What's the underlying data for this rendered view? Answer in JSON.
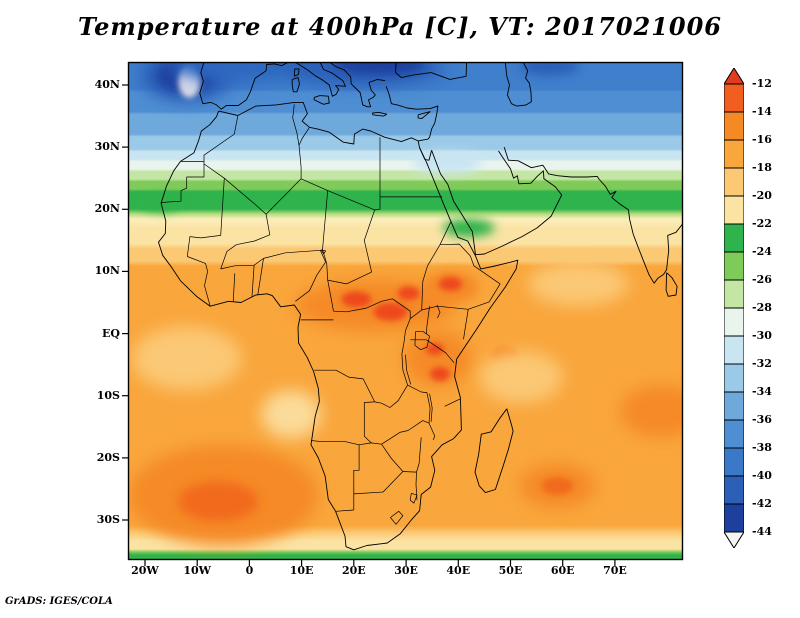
{
  "title": "Temperature at 400hPa [C], VT: 2017021006",
  "credit": "GrADS: IGES/COLA",
  "axes": {
    "y_ticks": [
      {
        "label": "40N",
        "lat": 40
      },
      {
        "label": "30N",
        "lat": 30
      },
      {
        "label": "20N",
        "lat": 20
      },
      {
        "label": "10N",
        "lat": 10
      },
      {
        "label": "EQ",
        "lat": 0
      },
      {
        "label": "10S",
        "lat": -10
      },
      {
        "label": "20S",
        "lat": -20
      },
      {
        "label": "30S",
        "lat": -30
      }
    ],
    "x_ticks": [
      {
        "label": "20W",
        "lon": -20
      },
      {
        "label": "10W",
        "lon": -10
      },
      {
        "label": "0",
        "lon": 0
      },
      {
        "label": "10E",
        "lon": 10
      },
      {
        "label": "20E",
        "lon": 20
      },
      {
        "label": "30E",
        "lon": 30
      },
      {
        "label": "40E",
        "lon": 40
      },
      {
        "label": "50E",
        "lon": 50
      },
      {
        "label": "60E",
        "lon": 60
      },
      {
        "label": "70E",
        "lon": 70
      }
    ]
  },
  "colorbar": {
    "boundary_labels": [
      "-12",
      "-14",
      "-16",
      "-18",
      "-20",
      "-22",
      "-24",
      "-26",
      "-28",
      "-30",
      "-32",
      "-34",
      "-36",
      "-38",
      "-40",
      "-42",
      "-44"
    ],
    "over_color": "#e23b1e",
    "under_color": "#f4f4f4",
    "segment_colors": [
      "#f15f20",
      "#f58a25",
      "#f9a63c",
      "#fbc874",
      "#fbe3a4",
      "#2fb34c",
      "#7fcb5a",
      "#c4e6a4",
      "#e9f4ec",
      "#c9e5f2",
      "#9bcae8",
      "#6fa9dc",
      "#4f8ed2",
      "#3a78c8",
      "#2b5fb8",
      "#1d3f9e"
    ]
  },
  "chart_data": {
    "type": "heatmap",
    "title": "Temperature at 400hPa [C], VT: 2017021006",
    "variable": "Temperature",
    "level_hPa": 400,
    "units": "C",
    "valid_time": "2017021006",
    "projection": "latlon",
    "lon_range": [
      -23,
      83
    ],
    "lat_range": [
      -36.5,
      43.7
    ],
    "x_tick_labels": [
      "20W",
      "10W",
      "0",
      "10E",
      "20E",
      "30E",
      "40E",
      "50E",
      "60E",
      "70E"
    ],
    "y_tick_labels": [
      "40N",
      "30N",
      "20N",
      "10N",
      "EQ",
      "10S",
      "20S",
      "30S"
    ],
    "contour_interval": 2,
    "levels": [
      -44,
      -42,
      -40,
      -38,
      -36,
      -34,
      -32,
      -30,
      -28,
      -26,
      -24,
      -22,
      -20,
      -18,
      -16,
      -14,
      -12
    ],
    "palette": {
      "over": "#e23b1e",
      "colors_warm_to_cold": [
        "#f15f20",
        "#f58a25",
        "#f9a63c",
        "#fbc874",
        "#fbe3a4",
        "#2fb34c",
        "#7fcb5a",
        "#c4e6a4",
        "#e9f4ec",
        "#c9e5f2",
        "#9bcae8",
        "#6fa9dc",
        "#4f8ed2",
        "#3a78c8",
        "#2b5fb8",
        "#1d3f9e"
      ],
      "under": "#f4f4f4"
    },
    "zonal_profile": [
      {
        "lat": 42,
        "approx_temp": -39
      },
      {
        "lat": 38,
        "approx_temp": -37
      },
      {
        "lat": 34,
        "approx_temp": -35
      },
      {
        "lat": 31,
        "approx_temp": -33
      },
      {
        "lat": 29,
        "approx_temp": -31
      },
      {
        "lat": 27.5,
        "approx_temp": -29
      },
      {
        "lat": 26,
        "approx_temp": -27
      },
      {
        "lat": 24,
        "approx_temp": -25
      },
      {
        "lat": 21,
        "approx_temp": -23
      },
      {
        "lat": 18,
        "approx_temp": -21
      },
      {
        "lat": 15,
        "approx_temp": -19
      },
      {
        "lat": 12,
        "approx_temp": -17.5
      },
      {
        "lat": 0,
        "approx_temp": -16
      },
      {
        "lat": -20,
        "approx_temp": -16
      },
      {
        "lat": -33,
        "approx_temp": -18.5
      },
      {
        "lat": -35,
        "approx_temp": -21
      },
      {
        "lat": -36.5,
        "approx_temp": -23.5
      }
    ],
    "features": [
      {
        "name": "cold pool NE Atlantic",
        "lon": -12,
        "lat": 41.5,
        "approx_temp": -44
      },
      {
        "name": "cold pool central Mediterranean/Europe",
        "lon": 20,
        "lat": 42.5,
        "approx_temp": -42
      },
      {
        "name": "warm core Central Africa",
        "lon": 24,
        "lat": 4.5,
        "approx_temp": -13
      },
      {
        "name": "warm core Ethiopia",
        "lon": 38.5,
        "lat": 7.5,
        "approx_temp": -13
      },
      {
        "name": "warm core East Africa",
        "lon": 36,
        "lat": -4,
        "approx_temp": -13
      },
      {
        "name": "warm pool South Atlantic",
        "lon": -5,
        "lat": -26,
        "approx_temp": -13
      },
      {
        "name": "warm patch SW Indian Ocean",
        "lon": 59,
        "lat": -24.5,
        "approx_temp": -14
      },
      {
        "name": "warm patch east edge",
        "lon": 79,
        "lat": -12.5,
        "approx_temp": -14
      }
    ],
    "legend_position": "right",
    "grid": false
  }
}
